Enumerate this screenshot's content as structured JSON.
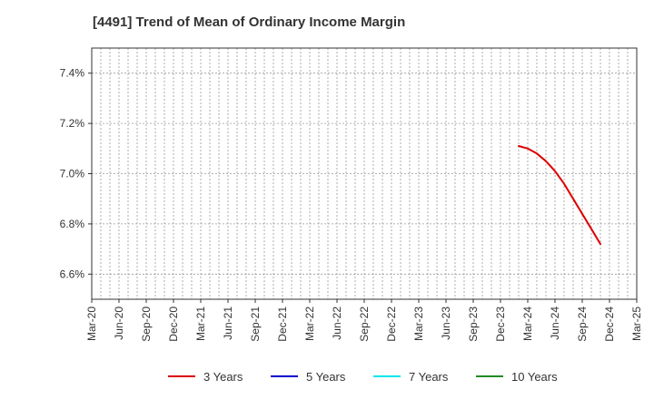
{
  "chart_data": {
    "type": "line",
    "title": "[4491]  Trend of Mean of Ordinary Income Margin",
    "xlabel": "",
    "ylabel": "",
    "x_ticks": [
      "Mar-20",
      "Jun-20",
      "Sep-20",
      "Dec-20",
      "Mar-21",
      "Jun-21",
      "Sep-21",
      "Dec-21",
      "Mar-22",
      "Jun-22",
      "Sep-22",
      "Dec-22",
      "Mar-23",
      "Jun-23",
      "Sep-23",
      "Dec-23",
      "Mar-24",
      "Jun-24",
      "Sep-24",
      "Dec-24",
      "Mar-25"
    ],
    "y_ticks": [
      "6.6%",
      "6.8%",
      "7.0%",
      "7.2%",
      "7.4%"
    ],
    "y_tick_values": [
      6.6,
      6.8,
      7.0,
      7.2,
      7.4
    ],
    "ylim": [
      6.5,
      7.5
    ],
    "x_range_months": [
      0,
      60
    ],
    "grid": true,
    "legend_position": "bottom",
    "series": [
      {
        "name": "3 Years",
        "color": "#dd0000",
        "points": [
          {
            "m": 47,
            "v": 7.11
          },
          {
            "m": 48,
            "v": 7.1
          },
          {
            "m": 49,
            "v": 7.08
          },
          {
            "m": 50,
            "v": 7.05
          },
          {
            "m": 51,
            "v": 7.01
          },
          {
            "m": 52,
            "v": 6.96
          },
          {
            "m": 53,
            "v": 6.9
          },
          {
            "m": 54,
            "v": 6.84
          },
          {
            "m": 55,
            "v": 6.78
          },
          {
            "m": 56,
            "v": 6.72
          }
        ]
      },
      {
        "name": "5 Years",
        "color": "#0000cc",
        "points": []
      },
      {
        "name": "7 Years",
        "color": "#00e5ee",
        "points": []
      },
      {
        "name": "10 Years",
        "color": "#228b22",
        "points": []
      }
    ]
  }
}
